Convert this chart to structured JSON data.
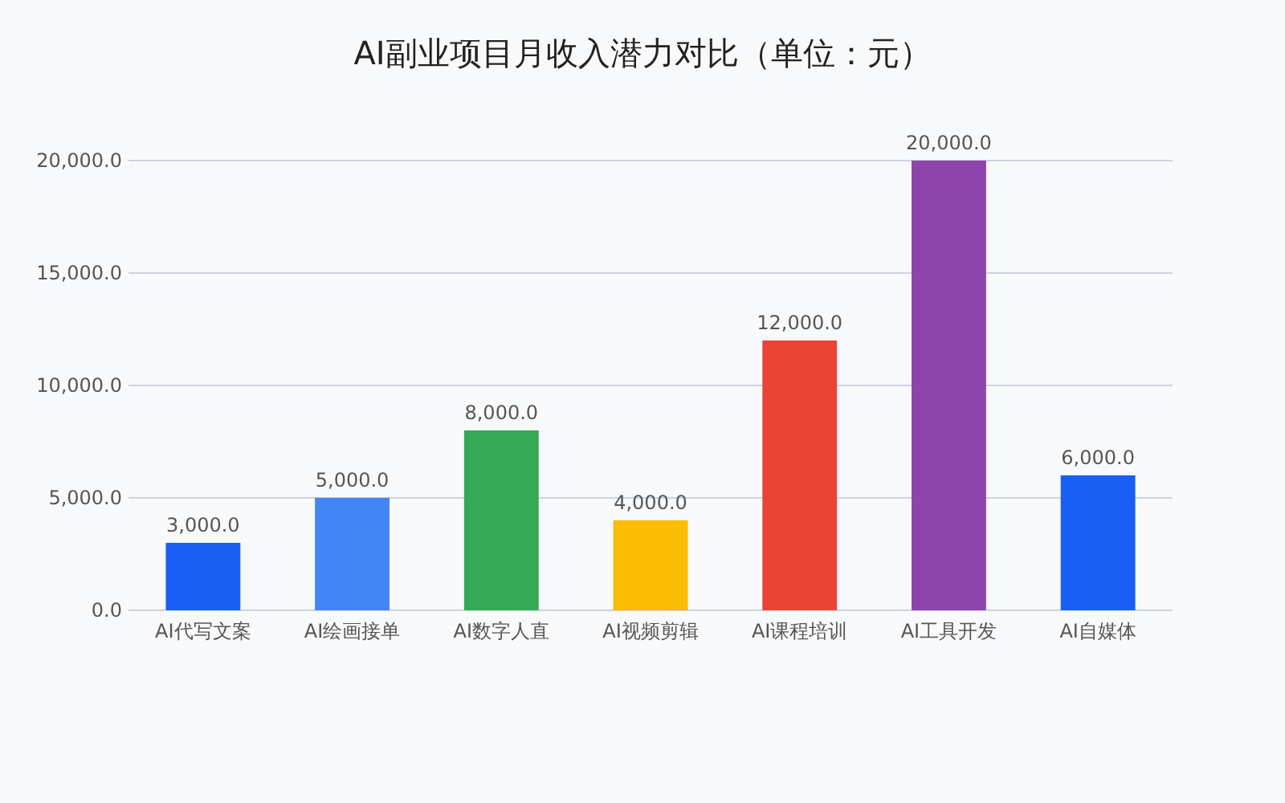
{
  "chart_data": {
    "type": "bar",
    "title": "AI副业项目月收入潜力对比（单位：元）",
    "categories": [
      "AI代写文案",
      "AI绘画接单",
      "AI数字人直",
      "AI视频剪辑",
      "AI课程培训",
      "AI工具开发",
      "AI自媒体"
    ],
    "values": [
      3000,
      5000,
      8000,
      4000,
      12000,
      20000,
      6000
    ],
    "colors": [
      "#1a5ff5",
      "#4285f4",
      "#34a853",
      "#fbbc04",
      "#ea4335",
      "#8e44ad",
      "#1a5ff5"
    ],
    "value_labels": [
      "3,000.0",
      "5,000.0",
      "8,000.0",
      "4,000.0",
      "12,000.0",
      "20,000.0",
      "6,000.0"
    ],
    "ylim": [
      0,
      20000
    ],
    "yticks": [
      {
        "value": 0,
        "label": "0.0"
      },
      {
        "value": 5000,
        "label": "5,000.0"
      },
      {
        "value": 10000,
        "label": "10,000.0"
      },
      {
        "value": 15000,
        "label": "15,000.0"
      },
      {
        "value": 20000,
        "label": "20,000.0"
      }
    ],
    "grid": "y"
  }
}
